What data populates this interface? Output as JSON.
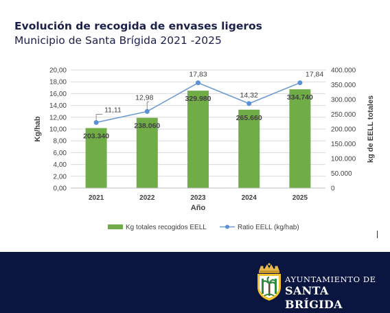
{
  "header": {
    "title": "Evolución de recogida de envases ligeros",
    "subtitle": "Municipio de Santa Brígida 2021 -2025"
  },
  "chart_data": {
    "type": "bar",
    "categories": [
      "2021",
      "2022",
      "2023",
      "2024",
      "2025"
    ],
    "series": [
      {
        "name": "Kg totales recogidos EELL",
        "kind": "bar",
        "axis": "right",
        "values": [
          203340,
          238060,
          329980,
          265660,
          334740
        ],
        "labels": [
          "203.340",
          "238.060",
          "329.980",
          "265.660",
          "334.740"
        ],
        "color": "#70ad47"
      },
      {
        "name": "Ratio EELL (kg/hab)",
        "kind": "line",
        "axis": "left",
        "values": [
          11.11,
          12.98,
          17.83,
          14.32,
          17.84
        ],
        "labels": [
          "11,11",
          "12,98",
          "17,83",
          "14,32",
          "17,84"
        ],
        "color": "#6f9bd3"
      }
    ],
    "xlabel": "Año",
    "ylabel": "Kg/hab",
    "y2label": "kg de EELL totales",
    "ylim": [
      0,
      20
    ],
    "y2lim": [
      0,
      400000
    ],
    "yticks": [
      "0,00",
      "2,00",
      "4,00",
      "6,00",
      "8,00",
      "10,00",
      "12,00",
      "14,00",
      "16,00",
      "18,00",
      "20,00"
    ],
    "y2ticks": [
      "0",
      "50.000",
      "100.000",
      "150.000",
      "200.000",
      "250.000",
      "300.000",
      "350.000",
      "400.000"
    ],
    "grid": true,
    "legend": "bottom"
  },
  "footer": {
    "brand_line1": "AYUNTAMIENTO DE",
    "brand_line2": "SANTA BRÍGIDA",
    "background": "#0b1640"
  }
}
